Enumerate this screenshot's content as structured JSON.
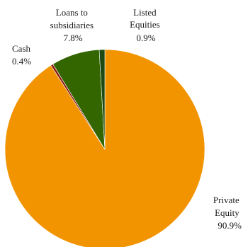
{
  "chart_data": {
    "type": "pie",
    "title": "",
    "start_angle_deg": 0,
    "direction": "clockwise",
    "legend": "none",
    "slices": [
      {
        "name": "Private Equity",
        "label_lines": [
          "Private",
          "Equity"
        ],
        "value": 90.9,
        "value_label": "90.9%",
        "color": "#F29400",
        "label_side": "right"
      },
      {
        "name": "Cash",
        "label_lines": [
          "Cash"
        ],
        "value": 0.4,
        "value_label": "0.4%",
        "color": "#8B1A10",
        "label_side": "left"
      },
      {
        "name": "Loans to subsidiaries",
        "label_lines": [
          "Loans to",
          "subsidiaries"
        ],
        "value": 7.8,
        "value_label": "7.8%",
        "color": "#346600",
        "label_side": "top"
      },
      {
        "name": "Listed Equities",
        "label_lines": [
          "Listed",
          "Equities"
        ],
        "value": 0.9,
        "value_label": "0.9%",
        "color": "#1B4A12",
        "label_side": "top"
      }
    ]
  }
}
